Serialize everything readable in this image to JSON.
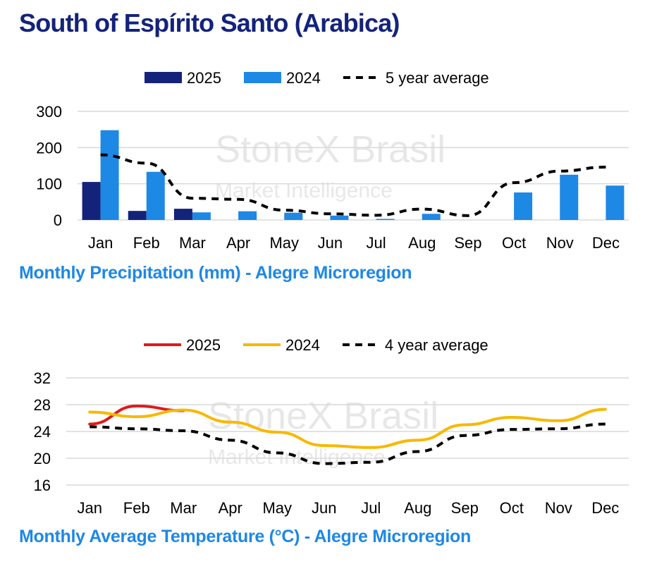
{
  "page": {
    "title": "South of Espírito Santo (Arabica)",
    "watermark_line1": "StoneX Brasil",
    "watermark_line2": "Market Intelligence"
  },
  "chart_data": [
    {
      "type": "bar",
      "caption": "Monthly Precipitation (mm) - Alegre Microregion",
      "categories": [
        "Jan",
        "Feb",
        "Mar",
        "Apr",
        "May",
        "Jun",
        "Jul",
        "Aug",
        "Sep",
        "Oct",
        "Nov",
        "Dec"
      ],
      "ylim": [
        0,
        300
      ],
      "yticks": [
        0,
        100,
        200,
        300
      ],
      "grid": true,
      "legend_position": "top-center",
      "series": [
        {
          "name": "2025",
          "type": "bar",
          "color": "#14237a",
          "values": [
            105,
            25,
            31,
            null,
            null,
            null,
            null,
            null,
            null,
            null,
            null,
            null
          ]
        },
        {
          "name": "2024",
          "type": "bar",
          "color": "#1e88e5",
          "values": [
            248,
            133,
            21,
            24,
            20,
            12,
            3,
            17,
            0,
            76,
            125,
            95
          ]
        },
        {
          "name": "5 year average",
          "type": "line",
          "style": "dashed",
          "color": "#000000",
          "values": [
            180,
            157,
            60,
            57,
            27,
            17,
            13,
            30,
            12,
            103,
            135,
            146
          ]
        }
      ]
    },
    {
      "type": "line",
      "caption": "Monthly Average Temperature (°C) - Alegre Microregion",
      "categories": [
        "Jan",
        "Feb",
        "Mar",
        "Apr",
        "May",
        "Jun",
        "Jul",
        "Aug",
        "Sep",
        "Oct",
        "Nov",
        "Dec"
      ],
      "ylim": [
        16,
        32
      ],
      "yticks": [
        16,
        20,
        24,
        28,
        32
      ],
      "grid": true,
      "legend_position": "top-center",
      "series": [
        {
          "name": "2025",
          "type": "line",
          "style": "solid",
          "color": "#e01a1a",
          "values": [
            25.1,
            27.8,
            27.1,
            null,
            null,
            null,
            null,
            null,
            null,
            null,
            null,
            null
          ]
        },
        {
          "name": "2024",
          "type": "line",
          "style": "solid",
          "color": "#f8b800",
          "values": [
            26.9,
            26.2,
            27.2,
            25.4,
            23.9,
            21.9,
            21.6,
            22.7,
            25.0,
            26.1,
            25.6,
            27.3
          ]
        },
        {
          "name": "4 year average",
          "type": "line",
          "style": "dashed",
          "color": "#000000",
          "values": [
            24.7,
            24.4,
            24.1,
            22.7,
            20.8,
            19.2,
            19.4,
            21.0,
            23.4,
            24.3,
            24.4,
            25.1
          ]
        }
      ]
    }
  ]
}
